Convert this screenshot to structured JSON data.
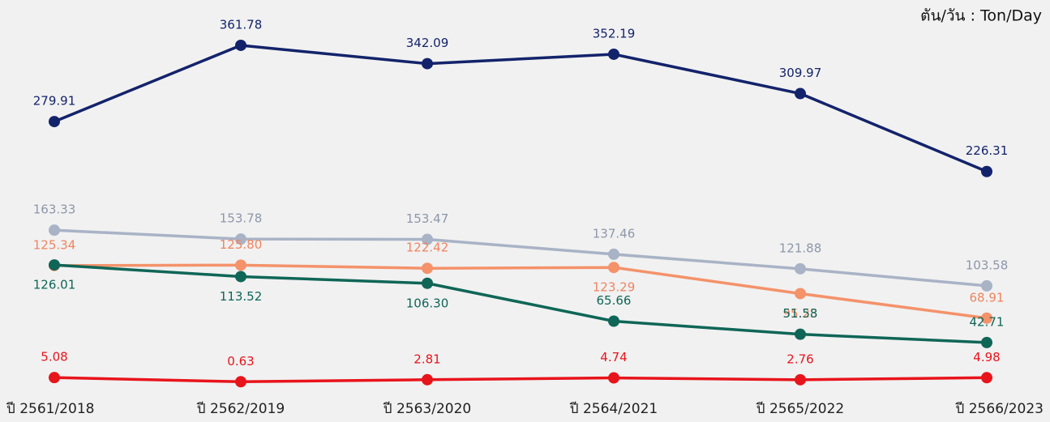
{
  "chart_data": {
    "type": "line",
    "unit": "ตัน/วัน : Ton/Day",
    "categories": [
      "ปี 2561/2018",
      "ปี 2562/2019",
      "ปี 2563/2020",
      "ปี 2564/2021",
      "ปี 2565/2022",
      "ปี 2566/2023"
    ],
    "ylim": [
      0,
      380
    ],
    "grid": false,
    "series": [
      {
        "color": "#13236b",
        "values": [
          279.91,
          361.78,
          342.09,
          352.19,
          309.97,
          226.31
        ],
        "value_labels": [
          "279.91",
          "361.78",
          "342.09",
          "352.19",
          "309.97",
          "226.31"
        ]
      },
      {
        "color": "#a9b3c6",
        "values": [
          163.33,
          153.78,
          153.47,
          137.46,
          121.88,
          103.58
        ],
        "value_labels": [
          "163.33",
          "153.78",
          "153.47",
          "137.46",
          "121.88",
          "103.58"
        ]
      },
      {
        "color": "#f4926a",
        "values": [
          125.34,
          125.8,
          122.42,
          123.29,
          95.23,
          68.91
        ],
        "value_labels": [
          "125.34",
          "125.80",
          "122.42",
          "123.29",
          "95.23",
          "68.91"
        ]
      },
      {
        "color": "#0f6657",
        "values": [
          126.01,
          113.52,
          106.3,
          65.66,
          51.58,
          42.71
        ],
        "value_labels": [
          "126.01",
          "113.52",
          "106.30",
          "65.66",
          "51.58",
          "42.71"
        ]
      },
      {
        "color": "#e8141b",
        "values": [
          5.08,
          0.63,
          2.81,
          4.74,
          2.76,
          4.98
        ],
        "value_labels": [
          "5.08",
          "0.63",
          "2.81",
          "4.74",
          "2.76",
          "4.98"
        ]
      }
    ]
  }
}
